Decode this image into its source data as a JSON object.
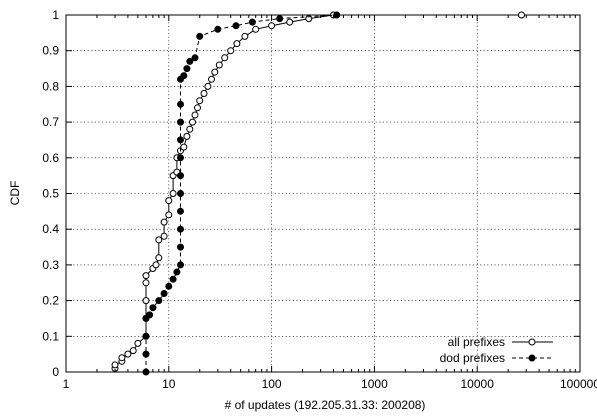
{
  "chart_data": {
    "type": "line",
    "title": "",
    "xlabel": "# of updates (192.205.31.33: 200208)",
    "ylabel": "CDF",
    "x_scale": "log",
    "xlim": [
      1,
      100000
    ],
    "ylim": [
      0,
      1
    ],
    "grid": true,
    "legend_position": "bottom-right",
    "x_ticks": [
      "1",
      "10",
      "100",
      "1000",
      "10000",
      "100000"
    ],
    "y_ticks": [
      "0",
      "0.1",
      "0.2",
      "0.3",
      "0.4",
      "0.5",
      "0.6",
      "0.7",
      "0.8",
      "0.9",
      "1"
    ],
    "series": [
      {
        "name": "all prefixes",
        "line_style": "solid",
        "marker": "open-circle",
        "color": "#000000",
        "points": [
          [
            3.0,
            0.01
          ],
          [
            3.0,
            0.02
          ],
          [
            3.5,
            0.03
          ],
          [
            3.5,
            0.04
          ],
          [
            4.0,
            0.05
          ],
          [
            4.5,
            0.06
          ],
          [
            5.0,
            0.08
          ],
          [
            6.0,
            0.1
          ],
          [
            6.0,
            0.15
          ],
          [
            6.0,
            0.2
          ],
          [
            6.0,
            0.25
          ],
          [
            6.0,
            0.27
          ],
          [
            7.0,
            0.29
          ],
          [
            7.5,
            0.3
          ],
          [
            8.0,
            0.32
          ],
          [
            8.0,
            0.37
          ],
          [
            9.0,
            0.38
          ],
          [
            9.0,
            0.42
          ],
          [
            10.0,
            0.44
          ],
          [
            10.0,
            0.48
          ],
          [
            11.0,
            0.5
          ],
          [
            11.0,
            0.55
          ],
          [
            12.0,
            0.56
          ],
          [
            12.0,
            0.6
          ],
          [
            13.0,
            0.62
          ],
          [
            14.0,
            0.63
          ],
          [
            15.0,
            0.66
          ],
          [
            16.0,
            0.68
          ],
          [
            17.0,
            0.7
          ],
          [
            18.0,
            0.72
          ],
          [
            19.0,
            0.74
          ],
          [
            20.0,
            0.76
          ],
          [
            22.0,
            0.78
          ],
          [
            24.0,
            0.8
          ],
          [
            26.0,
            0.82
          ],
          [
            28.0,
            0.84
          ],
          [
            31.0,
            0.86
          ],
          [
            35.0,
            0.88
          ],
          [
            40.0,
            0.9
          ],
          [
            46.0,
            0.92
          ],
          [
            55.0,
            0.94
          ],
          [
            70.0,
            0.96
          ],
          [
            100.0,
            0.97
          ],
          [
            150.0,
            0.98
          ],
          [
            230.0,
            0.99
          ],
          [
            400.0,
            1.0
          ],
          [
            27000.0,
            1.0
          ]
        ]
      },
      {
        "name": "dod prefixes",
        "line_style": "dashed",
        "marker": "filled-circle",
        "color": "#000000",
        "points": [
          [
            6.0,
            0.0
          ],
          [
            6.0,
            0.05
          ],
          [
            6.0,
            0.1
          ],
          [
            6.0,
            0.15
          ],
          [
            6.5,
            0.16
          ],
          [
            7.0,
            0.18
          ],
          [
            8.0,
            0.2
          ],
          [
            9.0,
            0.22
          ],
          [
            10.0,
            0.24
          ],
          [
            11.0,
            0.26
          ],
          [
            12.0,
            0.28
          ],
          [
            13.0,
            0.3
          ],
          [
            13.0,
            0.35
          ],
          [
            13.0,
            0.4
          ],
          [
            13.0,
            0.45
          ],
          [
            13.0,
            0.5
          ],
          [
            13.0,
            0.55
          ],
          [
            13.0,
            0.6
          ],
          [
            13.0,
            0.65
          ],
          [
            13.0,
            0.7
          ],
          [
            13.0,
            0.75
          ],
          [
            13.0,
            0.82
          ],
          [
            14.0,
            0.83
          ],
          [
            15.0,
            0.85
          ],
          [
            16.0,
            0.87
          ],
          [
            18.0,
            0.88
          ],
          [
            20.0,
            0.94
          ],
          [
            30.0,
            0.96
          ],
          [
            45.0,
            0.97
          ],
          [
            65.0,
            0.98
          ],
          [
            120.0,
            0.99
          ],
          [
            430.0,
            1.0
          ]
        ]
      }
    ]
  }
}
